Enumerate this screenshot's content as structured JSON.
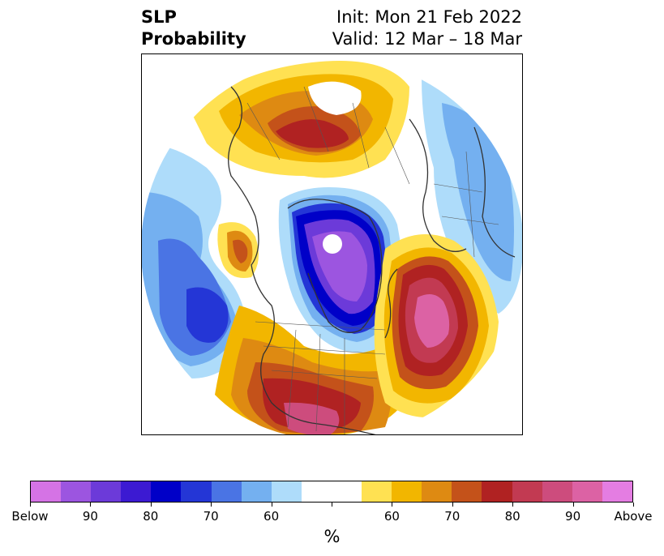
{
  "header": {
    "title_line1": "SLP",
    "title_line2": "Probability",
    "init_text": "Init: Mon 21 Feb 2022",
    "valid_text": "Valid: 12 Mar – 18 Mar"
  },
  "colorbar": {
    "colors": [
      "#d573e5",
      "#9c55e0",
      "#6c3ad9",
      "#3c1ad2",
      "#0000c8",
      "#2436d6",
      "#4a74e4",
      "#74b0f0",
      "#aedcfa",
      "#ffffff",
      "#ffffff",
      "#ffe152",
      "#f2b600",
      "#de8a12",
      "#c4521a",
      "#b02222",
      "#c23a52",
      "#cd4c7d",
      "#dc62a4",
      "#e47de2"
    ],
    "ticks": [
      "Below",
      "90",
      "80",
      "70",
      "60",
      "",
      "60",
      "70",
      "80",
      "90",
      "Above"
    ],
    "label": "%"
  }
}
